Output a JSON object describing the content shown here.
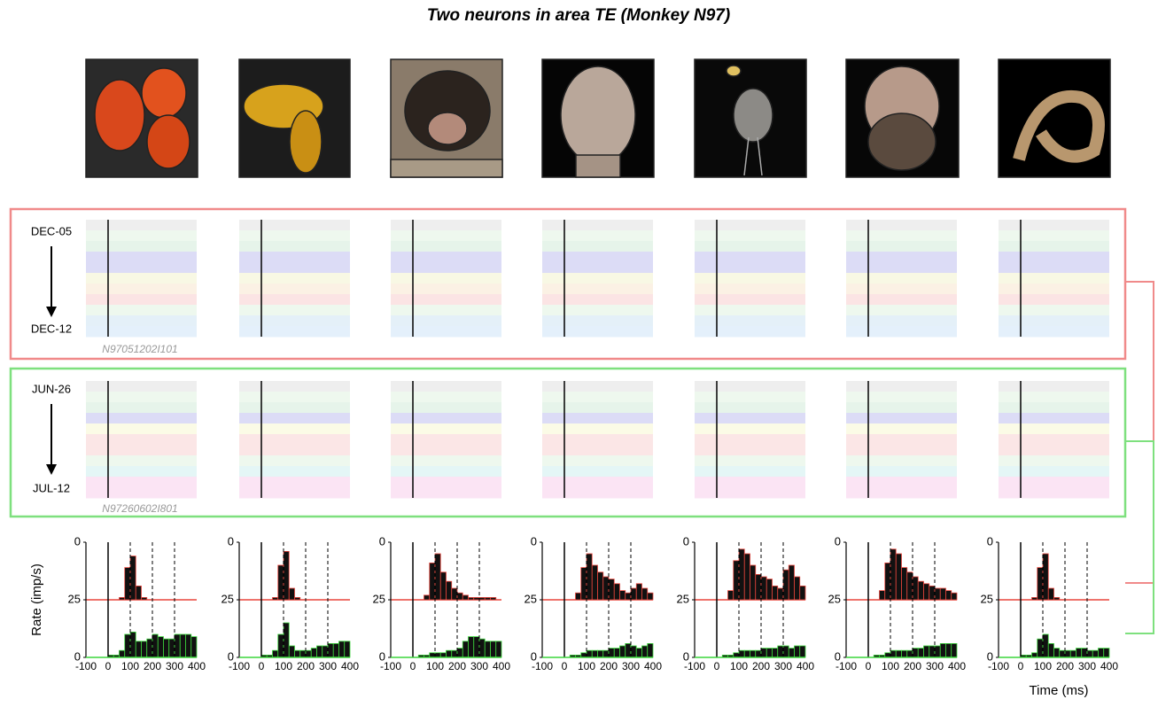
{
  "title": "Two neurons in  area TE  (Monkey N97)",
  "neurons": [
    {
      "start": "DEC-05",
      "end": "DEC-12",
      "id": "N97051202I101"
    },
    {
      "start": "JUN-26",
      "end": "JUL-12",
      "id": "N97260602I801"
    }
  ],
  "ylabel": "Rate (imp/s)",
  "xlabel": "Time (ms)",
  "chart_data": [
    {
      "type": "histogram",
      "bins": [
        -100,
        -75,
        -50,
        -25,
        0,
        25,
        50,
        75,
        100,
        125,
        150,
        175,
        200,
        225,
        250,
        275,
        300,
        325,
        350,
        375,
        400
      ],
      "series": [
        {
          "color": "#e8453c",
          "baseline": 25,
          "values": [
            0,
            0,
            0,
            0,
            0,
            0,
            1,
            14,
            19,
            6,
            1,
            0,
            0,
            0,
            0,
            0,
            0,
            0,
            0,
            0
          ]
        },
        {
          "color": "#3cd63c",
          "values": [
            0,
            0,
            0,
            0,
            1,
            1,
            3,
            10,
            11,
            7,
            7,
            8,
            10,
            9,
            8,
            8,
            10,
            10,
            10,
            9
          ]
        }
      ],
      "xlim": [
        -100,
        400
      ],
      "xticks": [
        -100,
        0,
        100,
        200,
        300,
        400
      ],
      "ylim": [
        0,
        50
      ],
      "yticks": [
        0,
        25,
        {
          "value": 50,
          "label": "0"
        }
      ],
      "grid": true
    },
    {
      "type": "histogram",
      "bins": [
        -100,
        -75,
        -50,
        -25,
        0,
        25,
        50,
        75,
        100,
        125,
        150,
        175,
        200,
        225,
        250,
        275,
        300,
        325,
        350,
        375,
        400
      ],
      "series": [
        {
          "color": "#e8453c",
          "baseline": 25,
          "values": [
            0,
            0,
            0,
            0,
            0,
            0,
            1,
            15,
            21,
            5,
            1,
            0,
            0,
            0,
            0,
            0,
            0,
            0,
            0,
            0
          ]
        },
        {
          "color": "#3cd63c",
          "values": [
            0,
            0,
            0,
            0,
            1,
            1,
            3,
            10,
            15,
            5,
            3,
            3,
            3,
            4,
            5,
            5,
            6,
            6,
            7,
            7
          ]
        }
      ],
      "xlim": [
        -100,
        400
      ],
      "xticks": [
        -100,
        0,
        100,
        200,
        300,
        400
      ],
      "ylim": [
        0,
        50
      ],
      "yticks": [
        0,
        25,
        {
          "value": 50,
          "label": "0"
        }
      ],
      "grid": true
    },
    {
      "type": "histogram",
      "bins": [
        -100,
        -75,
        -50,
        -25,
        0,
        25,
        50,
        75,
        100,
        125,
        150,
        175,
        200,
        225,
        250,
        275,
        300,
        325,
        350,
        375,
        400
      ],
      "series": [
        {
          "color": "#e8453c",
          "baseline": 25,
          "values": [
            0,
            0,
            0,
            0,
            0,
            0,
            2,
            16,
            20,
            12,
            8,
            5,
            3,
            2,
            1,
            1,
            1,
            1,
            1,
            0
          ]
        },
        {
          "color": "#3cd63c",
          "values": [
            0,
            0,
            0,
            0,
            0,
            1,
            1,
            2,
            2,
            2,
            3,
            3,
            4,
            7,
            9,
            9,
            8,
            7,
            7,
            7
          ]
        }
      ],
      "xlim": [
        -100,
        400
      ],
      "xticks": [
        -100,
        0,
        100,
        200,
        300,
        400
      ],
      "ylim": [
        0,
        50
      ],
      "yticks": [
        0,
        25,
        {
          "value": 50,
          "label": "0"
        }
      ],
      "grid": true
    },
    {
      "type": "histogram",
      "bins": [
        -100,
        -75,
        -50,
        -25,
        0,
        25,
        50,
        75,
        100,
        125,
        150,
        175,
        200,
        225,
        250,
        275,
        300,
        325,
        350,
        375,
        400
      ],
      "series": [
        {
          "color": "#e8453c",
          "baseline": 25,
          "values": [
            0,
            0,
            0,
            0,
            0,
            0,
            3,
            14,
            20,
            15,
            12,
            10,
            9,
            7,
            4,
            3,
            5,
            7,
            5,
            3
          ]
        },
        {
          "color": "#3cd63c",
          "values": [
            0,
            0,
            0,
            0,
            0,
            1,
            1,
            2,
            3,
            3,
            3,
            3,
            4,
            4,
            5,
            6,
            5,
            4,
            5,
            6
          ]
        }
      ],
      "xlim": [
        -100,
        400
      ],
      "xticks": [
        -100,
        0,
        100,
        200,
        300,
        400
      ],
      "ylim": [
        0,
        50
      ],
      "yticks": [
        0,
        25,
        {
          "value": 50,
          "label": "0"
        }
      ],
      "grid": true
    },
    {
      "type": "histogram",
      "bins": [
        -100,
        -75,
        -50,
        -25,
        0,
        25,
        50,
        75,
        100,
        125,
        150,
        175,
        200,
        225,
        250,
        275,
        300,
        325,
        350,
        375,
        400
      ],
      "series": [
        {
          "color": "#e8453c",
          "baseline": 25,
          "values": [
            0,
            0,
            0,
            0,
            0,
            0,
            4,
            17,
            22,
            20,
            15,
            11,
            10,
            9,
            6,
            5,
            13,
            15,
            10,
            6
          ]
        },
        {
          "color": "#3cd63c",
          "values": [
            0,
            0,
            0,
            0,
            0,
            1,
            1,
            2,
            3,
            3,
            3,
            3,
            4,
            4,
            4,
            5,
            5,
            4,
            5,
            5
          ]
        }
      ],
      "xlim": [
        -100,
        400
      ],
      "xticks": [
        -100,
        0,
        100,
        200,
        300,
        400
      ],
      "ylim": [
        0,
        50
      ],
      "yticks": [
        0,
        25,
        {
          "value": 50,
          "label": "0"
        }
      ],
      "grid": true
    },
    {
      "type": "histogram",
      "bins": [
        -100,
        -75,
        -50,
        -25,
        0,
        25,
        50,
        75,
        100,
        125,
        150,
        175,
        200,
        225,
        250,
        275,
        300,
        325,
        350,
        375,
        400
      ],
      "series": [
        {
          "color": "#e8453c",
          "baseline": 25,
          "values": [
            0,
            0,
            0,
            0,
            0,
            0,
            4,
            16,
            22,
            20,
            14,
            12,
            10,
            8,
            7,
            6,
            5,
            5,
            4,
            3
          ]
        },
        {
          "color": "#3cd63c",
          "values": [
            0,
            0,
            0,
            0,
            0,
            1,
            1,
            2,
            3,
            3,
            3,
            3,
            4,
            4,
            5,
            5,
            5,
            6,
            6,
            6
          ]
        }
      ],
      "xlim": [
        -100,
        400
      ],
      "xticks": [
        -100,
        0,
        100,
        200,
        300,
        400
      ],
      "ylim": [
        0,
        50
      ],
      "yticks": [
        0,
        25,
        {
          "value": 50,
          "label": "0"
        }
      ],
      "grid": true
    },
    {
      "type": "histogram",
      "bins": [
        -100,
        -75,
        -50,
        -25,
        0,
        25,
        50,
        75,
        100,
        125,
        150,
        175,
        200,
        225,
        250,
        275,
        300,
        325,
        350,
        375,
        400
      ],
      "series": [
        {
          "color": "#e8453c",
          "baseline": 25,
          "values": [
            0,
            0,
            0,
            0,
            0,
            0,
            1,
            14,
            20,
            5,
            1,
            0,
            0,
            0,
            0,
            0,
            0,
            0,
            0,
            0
          ]
        },
        {
          "color": "#3cd63c",
          "values": [
            0,
            0,
            0,
            0,
            1,
            1,
            2,
            8,
            10,
            6,
            4,
            3,
            3,
            3,
            4,
            4,
            3,
            3,
            4,
            4
          ]
        }
      ],
      "xlim": [
        -100,
        400
      ],
      "xticks": [
        -100,
        0,
        100,
        200,
        300,
        400
      ],
      "ylim": [
        0,
        50
      ],
      "yticks": [
        0,
        25,
        {
          "value": 50,
          "label": "0"
        }
      ],
      "grid": true
    }
  ]
}
